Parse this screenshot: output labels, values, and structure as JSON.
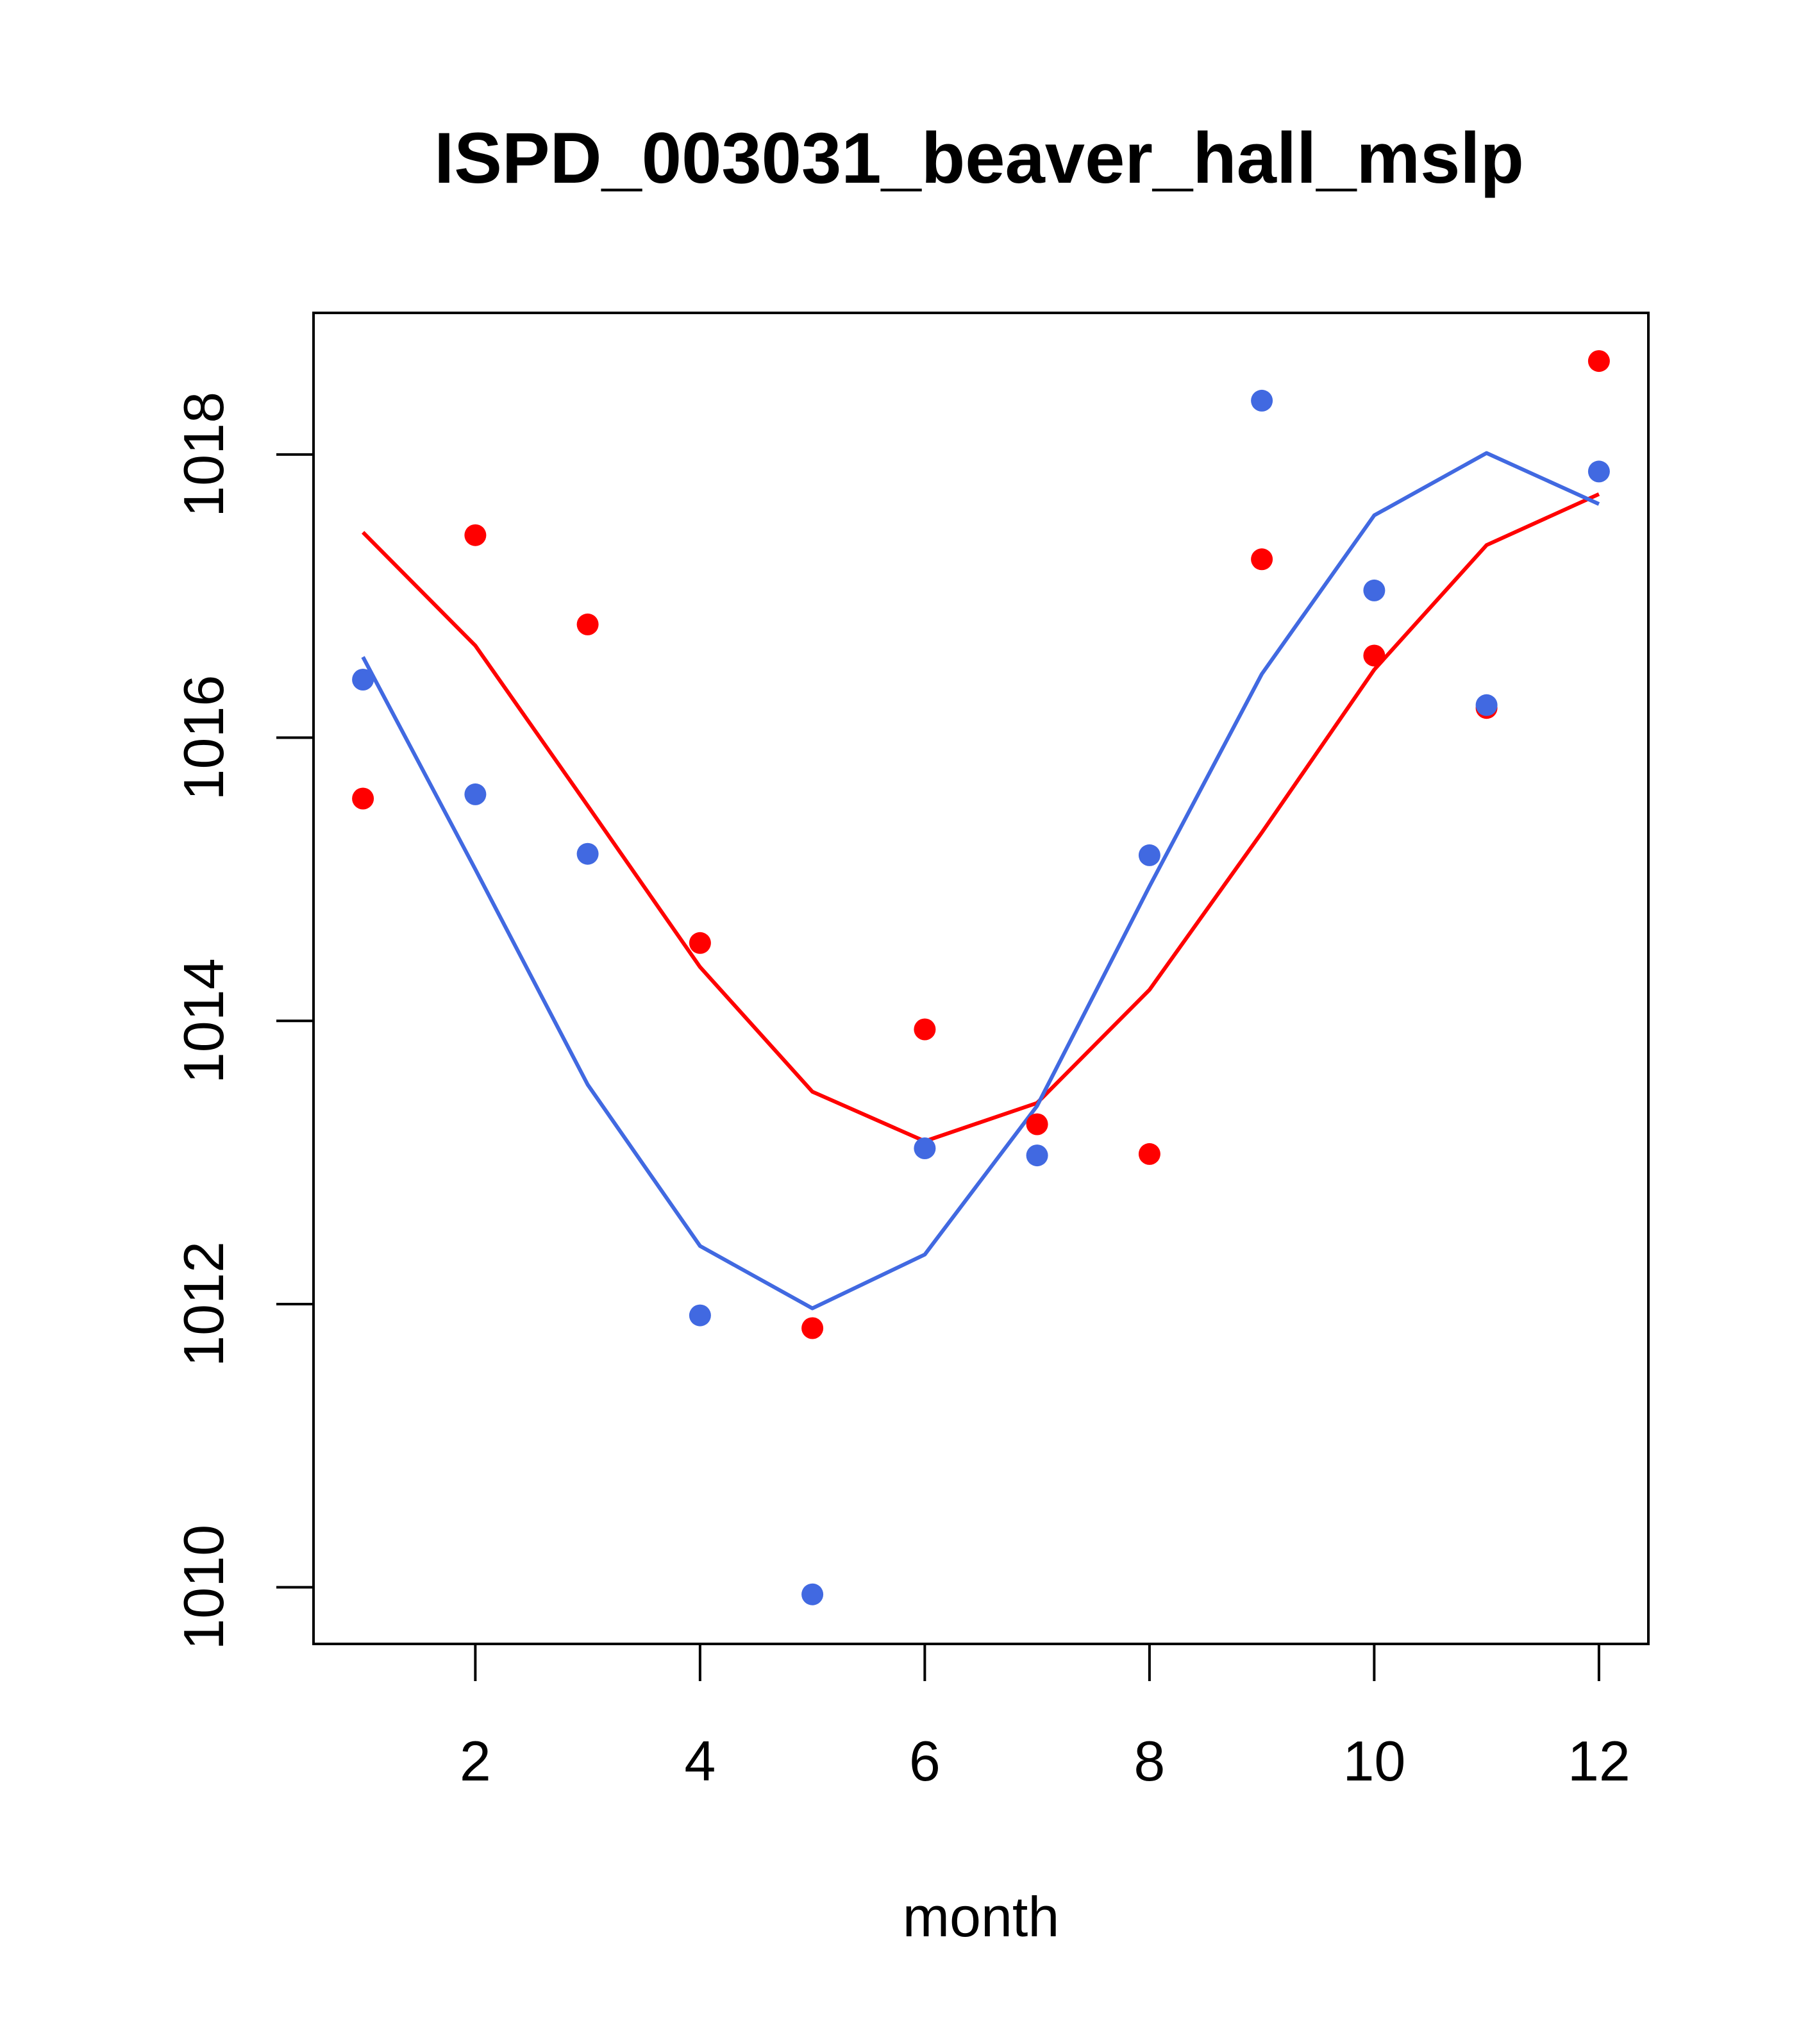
{
  "chart_data": {
    "type": "scatter",
    "title": "ISPD_003031_beaver_hall_mslp",
    "xlabel": "month",
    "ylabel": "",
    "xlim": [
      0.56,
      12.44
    ],
    "ylim": [
      1009.6,
      1019.0
    ],
    "xticks": [
      2,
      4,
      6,
      8,
      10,
      12
    ],
    "yticks": [
      1010,
      1012,
      1014,
      1016,
      1018
    ],
    "xtick_labels": [
      "2",
      "4",
      "6",
      "8",
      "10",
      "12"
    ],
    "ytick_labels": [
      "1010",
      "1012",
      "1014",
      "1016",
      "1018"
    ],
    "grid": false,
    "legend": "none",
    "x": [
      1,
      2,
      3,
      4,
      5,
      6,
      7,
      8,
      9,
      10,
      11,
      12
    ],
    "series": [
      {
        "name": "red",
        "color": "#ff0000",
        "points": [
          1015.57,
          1017.43,
          1016.8,
          1014.55,
          1011.83,
          1013.94,
          1013.27,
          1013.06,
          1017.26,
          1016.58,
          1016.21,
          1018.66
        ],
        "line": [
          1017.45,
          1016.65,
          1015.52,
          1014.38,
          1013.5,
          1013.15,
          1013.42,
          1014.22,
          1015.33,
          1016.48,
          1017.36,
          1017.72
        ]
      },
      {
        "name": "blue",
        "color": "#4169e1",
        "points": [
          1016.41,
          1015.6,
          1015.18,
          1011.92,
          1009.95,
          1013.1,
          1013.05,
          1015.17,
          1018.38,
          1017.04,
          1016.23,
          1017.88
        ],
        "line": [
          1016.57,
          1015.07,
          1013.55,
          1012.41,
          1011.97,
          1012.35,
          1013.4,
          1014.95,
          1016.45,
          1017.57,
          1018.01,
          1017.65
        ]
      }
    ]
  }
}
